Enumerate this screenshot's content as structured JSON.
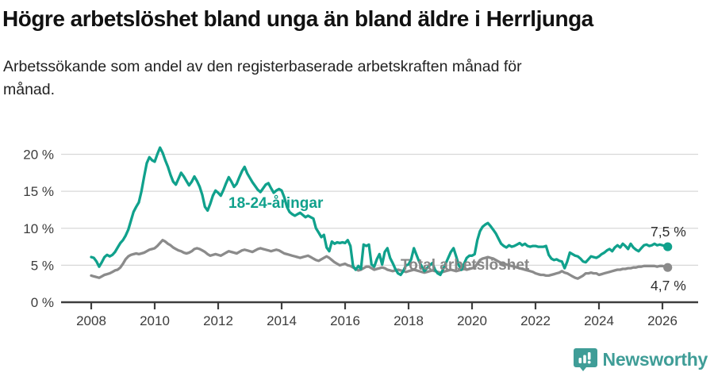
{
  "header": {
    "title": "Högre arbetslöshet bland unga än bland äldre i Herrljunga",
    "subtitle_lines": [
      "Arbetssökande som andel av den registerbaserade arbetskraften månad för",
      "månad."
    ]
  },
  "chart_data": {
    "type": "line",
    "title": "Högre arbetslöshet bland unga än bland äldre i Herrljunga",
    "subtitle": "Arbetssökande som andel av den registerbaserade arbetskraften månad för månad.",
    "unit": "%",
    "x_range": [
      "2008-01",
      "2026-03"
    ],
    "x_ticks": [
      2008,
      2010,
      2012,
      2014,
      2016,
      2018,
      2020,
      2022,
      2024,
      2026
    ],
    "x_tick_labels": [
      "2008",
      "2010",
      "2012",
      "2014",
      "2016",
      "2018",
      "2020",
      "2022",
      "2024",
      "2026"
    ],
    "y_ticks": [
      0,
      5,
      10,
      15,
      20
    ],
    "y_tick_labels": [
      "0 %",
      "5 %",
      "10 %",
      "15 %",
      "20 %"
    ],
    "ylim": [
      0,
      21.5
    ],
    "grid": "horizontal",
    "legend_position": "inline-labels",
    "axis_color": "#3d3d3d",
    "grid_color": "#d8d8d8",
    "series": [
      {
        "name": "18-24-åringar",
        "color": "#10a18c",
        "end_label": "7,5 %",
        "end_value": 7.5,
        "values": [
          6.1,
          6.0,
          5.5,
          4.8,
          5.4,
          6.1,
          6.4,
          6.2,
          6.4,
          6.8,
          7.4,
          8.0,
          8.4,
          9.0,
          9.8,
          11.0,
          12.2,
          12.9,
          13.5,
          15.0,
          17.0,
          18.8,
          19.6,
          19.2,
          19.0,
          20.0,
          20.9,
          20.2,
          19.2,
          18.3,
          17.2,
          16.3,
          15.9,
          16.7,
          17.5,
          17.0,
          16.4,
          15.8,
          16.3,
          17.0,
          16.4,
          15.6,
          14.5,
          12.9,
          12.4,
          13.3,
          14.4,
          15.1,
          14.8,
          14.4,
          15.2,
          16.1,
          16.9,
          16.3,
          15.6,
          16.0,
          16.9,
          17.7,
          18.3,
          17.4,
          16.8,
          16.2,
          15.7,
          15.2,
          14.9,
          15.4,
          15.9,
          16.1,
          15.4,
          14.8,
          15.1,
          15.3,
          15.1,
          14.2,
          12.9,
          12.2,
          11.9,
          11.7,
          11.9,
          12.1,
          11.8,
          11.5,
          11.7,
          11.5,
          11.3,
          10.0,
          9.4,
          8.8,
          9.1,
          7.4,
          6.9,
          8.2,
          7.9,
          8.1,
          8.0,
          8.1,
          8.0,
          8.4,
          7.6,
          4.9,
          4.4,
          4.9,
          4.5,
          7.8,
          7.6,
          7.8,
          5.1,
          4.8,
          5.8,
          6.5,
          5.1,
          6.8,
          7.3,
          6.0,
          5.3,
          4.5,
          3.9,
          3.7,
          4.2,
          5.0,
          5.1,
          5.8,
          7.3,
          6.4,
          5.5,
          4.8,
          4.2,
          4.6,
          5.0,
          5.3,
          4.4,
          3.9,
          3.7,
          4.4,
          5.2,
          6.0,
          6.8,
          7.3,
          6.2,
          5.0,
          4.4,
          5.2,
          6.0,
          6.3,
          6.3,
          6.5,
          8.4,
          9.6,
          10.2,
          10.5,
          10.7,
          10.3,
          9.8,
          9.3,
          8.6,
          7.9,
          7.6,
          7.4,
          7.7,
          7.5,
          7.6,
          7.8,
          8.0,
          7.7,
          7.9,
          7.6,
          7.5,
          7.6,
          7.6,
          7.5,
          7.5,
          7.5,
          7.6,
          6.4,
          5.9,
          5.7,
          5.8,
          5.6,
          5.5,
          4.6,
          5.5,
          6.7,
          6.5,
          6.3,
          6.2,
          5.9,
          5.5,
          5.4,
          5.8,
          6.2,
          6.1,
          6.0,
          6.2,
          6.5,
          6.7,
          7.0,
          7.2,
          6.9,
          7.4,
          7.7,
          7.4,
          7.9,
          7.6,
          7.2,
          7.9,
          7.4,
          7.1,
          6.9,
          7.3,
          7.7,
          7.8,
          7.6,
          7.7,
          7.9,
          7.7,
          7.8,
          7.7,
          7.6,
          7.5
        ]
      },
      {
        "name": "Total arbetslöshet",
        "color": "#8b8b8b",
        "end_label": "4,7 %",
        "end_value": 4.7,
        "values": [
          3.6,
          3.5,
          3.4,
          3.3,
          3.5,
          3.7,
          3.8,
          3.9,
          4.1,
          4.3,
          4.4,
          4.7,
          5.2,
          5.8,
          6.2,
          6.4,
          6.5,
          6.6,
          6.5,
          6.6,
          6.7,
          6.9,
          7.1,
          7.2,
          7.3,
          7.6,
          8.0,
          8.4,
          8.2,
          7.9,
          7.7,
          7.4,
          7.2,
          7.0,
          6.9,
          6.7,
          6.6,
          6.7,
          6.9,
          7.2,
          7.3,
          7.2,
          7.0,
          6.8,
          6.5,
          6.3,
          6.4,
          6.5,
          6.4,
          6.3,
          6.5,
          6.7,
          6.9,
          6.8,
          6.7,
          6.6,
          6.8,
          7.0,
          7.1,
          7.0,
          6.9,
          6.8,
          7.0,
          7.2,
          7.3,
          7.2,
          7.1,
          7.0,
          6.9,
          7.0,
          7.1,
          7.0,
          6.8,
          6.6,
          6.5,
          6.4,
          6.3,
          6.2,
          6.1,
          6.0,
          6.1,
          6.2,
          6.3,
          6.1,
          5.9,
          5.7,
          5.6,
          5.8,
          6.0,
          6.2,
          6.0,
          5.7,
          5.4,
          5.2,
          5.0,
          5.1,
          5.2,
          5.0,
          4.9,
          4.7,
          4.5,
          4.3,
          4.4,
          4.6,
          4.8,
          4.8,
          4.6,
          4.4,
          4.5,
          4.6,
          4.7,
          4.6,
          4.4,
          4.3,
          4.2,
          4.3,
          4.4,
          4.3,
          4.2,
          4.1,
          4.2,
          4.3,
          4.4,
          4.3,
          4.2,
          4.1,
          4.0,
          4.1,
          4.2,
          4.3,
          4.2,
          4.1,
          4.0,
          4.1,
          4.2,
          4.3,
          4.4,
          4.3,
          4.2,
          4.3,
          4.4,
          4.5,
          4.4,
          4.5,
          4.6,
          4.7,
          5.2,
          5.7,
          5.9,
          6.0,
          6.1,
          6.0,
          5.9,
          5.7,
          5.5,
          5.3,
          5.2,
          5.1,
          5.0,
          4.9,
          4.8,
          4.7,
          4.6,
          4.5,
          4.4,
          4.3,
          4.2,
          4.1,
          3.9,
          3.8,
          3.7,
          3.7,
          3.6,
          3.6,
          3.7,
          3.8,
          3.9,
          4.0,
          4.2,
          4.0,
          3.9,
          3.7,
          3.5,
          3.3,
          3.2,
          3.4,
          3.6,
          3.9,
          3.9,
          4.0,
          3.9,
          3.9,
          3.7,
          3.8,
          3.9,
          4.0,
          4.1,
          4.2,
          4.3,
          4.4,
          4.4,
          4.5,
          4.5,
          4.6,
          4.6,
          4.7,
          4.7,
          4.8,
          4.8,
          4.9,
          4.9,
          4.9,
          4.9,
          4.9,
          4.8,
          4.9,
          4.9,
          4.8,
          4.7
        ]
      }
    ]
  },
  "footer": {
    "brand": "Newsworthy"
  }
}
